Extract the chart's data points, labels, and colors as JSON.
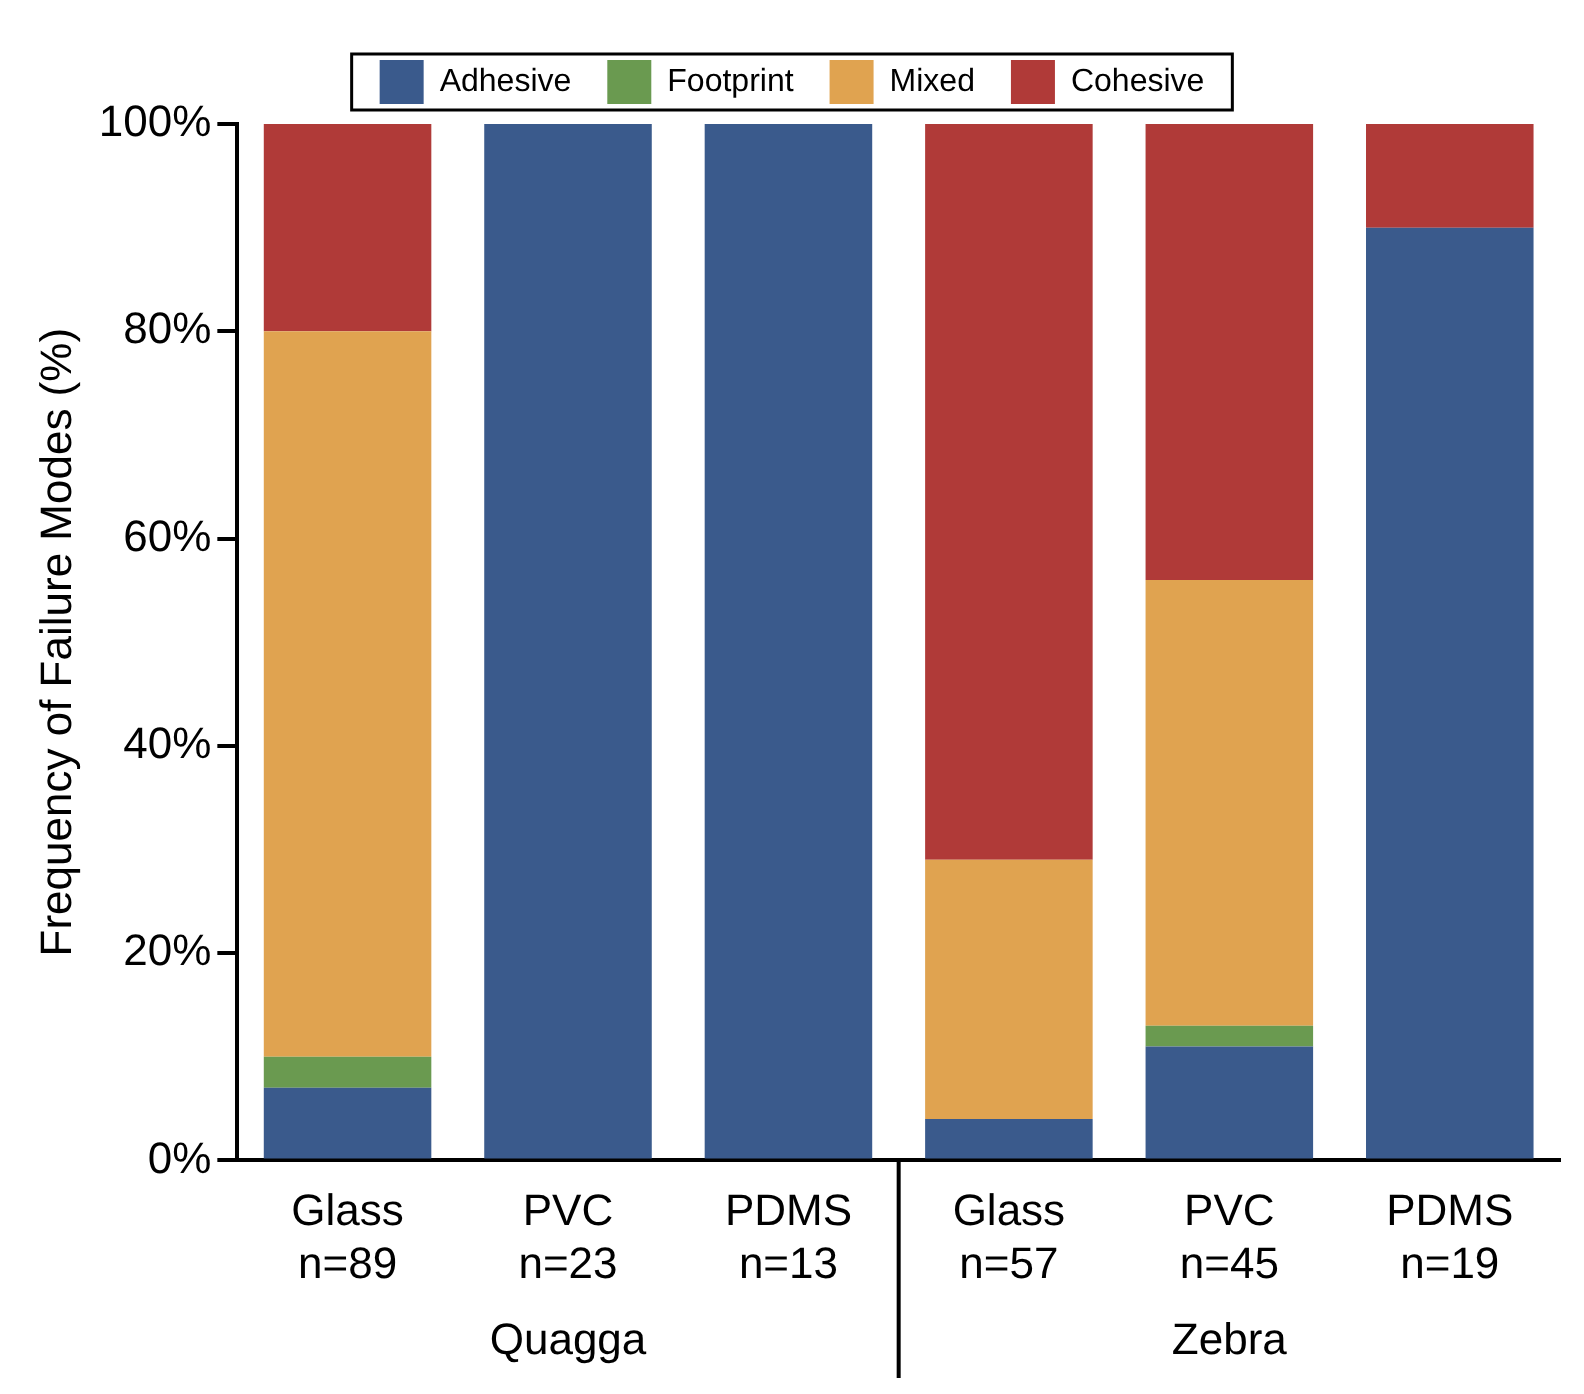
{
  "chart_data": {
    "type": "bar",
    "stacked": true,
    "ylabel": "Frequency of Failure Modes (%)",
    "categories": [
      "Glass\nn=89",
      "PVC\nn=23",
      "PDMS\nn=13",
      "Glass\nn=57",
      "PVC\nn=45",
      "PDMS\nn=19"
    ],
    "series": [
      {
        "name": "Adhesive",
        "color": "#3a5a8c",
        "values": [
          7,
          100,
          100,
          4,
          11,
          90
        ]
      },
      {
        "name": "Footprint",
        "color": "#6a9a50",
        "values": [
          3,
          0,
          0,
          0,
          2,
          0
        ]
      },
      {
        "name": "Mixed",
        "color": "#e0a350",
        "values": [
          70,
          0,
          0,
          25,
          43,
          0
        ]
      },
      {
        "name": "Cohesive",
        "color": "#b03a38",
        "values": [
          20,
          0,
          0,
          71,
          44,
          10
        ]
      }
    ],
    "ylim": [
      0,
      100
    ],
    "yticks": [
      {
        "value": 0,
        "label": "0%"
      },
      {
        "value": 20,
        "label": "20%"
      },
      {
        "value": 40,
        "label": "40%"
      },
      {
        "value": 60,
        "label": "60%"
      },
      {
        "value": 80,
        "label": "80%"
      },
      {
        "value": 100,
        "label": "100%"
      }
    ],
    "annotations": [
      "Quagga",
      "Zebra"
    ],
    "grid": false,
    "legend": "top"
  }
}
